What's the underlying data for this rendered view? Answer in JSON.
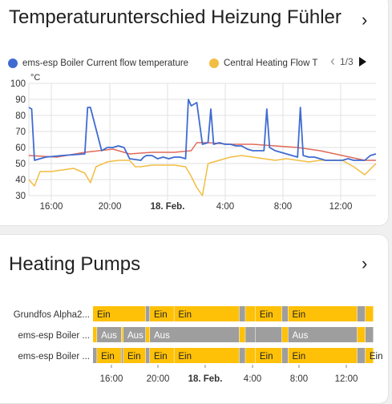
{
  "card1": {
    "title": "Temperaturunterschied Heizung Fühler",
    "legend": [
      {
        "label": "ems-esp Boiler Current flow temperature",
        "color": "#3f6bd1"
      },
      {
        "label": "Central Heating Flow T",
        "color": "#f2bd42"
      }
    ],
    "pager": {
      "text": "1/3",
      "prev_icon": "chevron-left-icon",
      "next_icon": "triangle-right-icon"
    },
    "chart_data": {
      "type": "line",
      "unit_label": "°C",
      "ylim": [
        30,
        100
      ],
      "yticks": [
        "100",
        "90",
        "80",
        "70",
        "60",
        "50",
        "40",
        "30"
      ],
      "xticks": [
        "16:00",
        "20:00",
        "18. Feb.",
        "4:00",
        "8:00",
        "12:00"
      ],
      "grid": true,
      "series": [
        {
          "name": "ems-esp Boiler Current flow temperature",
          "color": "#3f6bd1",
          "x": [
            0,
            0.5,
            1,
            3,
            6,
            10,
            10.5,
            11,
            13,
            13.5,
            14,
            15,
            16,
            17,
            18,
            20,
            20.5,
            21,
            22,
            23,
            24,
            25,
            26,
            27,
            28,
            28.5,
            29,
            30,
            31,
            32,
            32.5,
            33,
            34,
            35,
            36,
            37,
            38,
            39,
            40,
            41,
            42,
            42.5,
            43,
            44,
            46,
            47,
            48,
            48.5,
            49,
            50,
            51,
            52,
            53,
            54,
            55,
            56,
            57,
            58,
            59,
            60,
            61,
            62
          ],
          "y": [
            85,
            84,
            52,
            54,
            55,
            56,
            85,
            85,
            58,
            59,
            60,
            60,
            61,
            60,
            53,
            52,
            54,
            55,
            55,
            53,
            54,
            53,
            54,
            54,
            53,
            90,
            86,
            88,
            62,
            63,
            84,
            62,
            63,
            62,
            62,
            61,
            61,
            59,
            58,
            58,
            58,
            84,
            60,
            58,
            56,
            55,
            54,
            85,
            55,
            54,
            54,
            53,
            52,
            52,
            52,
            52,
            53,
            52,
            52,
            52,
            55,
            56
          ]
        },
        {
          "name": "Central Heating Flow T",
          "color": "#f2bd42",
          "x": [
            0,
            1,
            2,
            4,
            6,
            8,
            10,
            11,
            12,
            14,
            16,
            18,
            19,
            20,
            22,
            24,
            26,
            28,
            29,
            30,
            31,
            32,
            33,
            34,
            36,
            38,
            40,
            42,
            44,
            46,
            48,
            50,
            52,
            54,
            56,
            58,
            60,
            62
          ],
          "y": [
            40,
            36,
            45,
            45,
            46,
            47,
            44,
            38,
            48,
            51,
            52,
            52,
            48,
            48,
            49,
            49,
            49,
            48,
            42,
            35,
            30,
            50,
            51,
            52,
            54,
            55,
            54,
            53,
            52,
            53,
            52,
            51,
            52,
            52,
            52,
            48,
            43,
            50
          ]
        },
        {
          "name": "",
          "color": "#e06a5a",
          "x": [
            0,
            5,
            10,
            15,
            18,
            22,
            26,
            29,
            30,
            32,
            36,
            40,
            44,
            48,
            52,
            56,
            60,
            62
          ],
          "y": [
            55,
            54,
            57,
            59,
            56,
            57,
            57,
            58,
            63,
            63,
            62,
            62,
            61,
            60,
            58,
            55,
            52,
            52
          ]
        }
      ]
    }
  },
  "card2": {
    "title": "Heating Pumps",
    "on_color": "#ffc107",
    "off_color": "#9e9e9e",
    "rows": [
      {
        "label": "Grundfos Alpha2...",
        "segments": [
          {
            "s": 0,
            "e": 26,
            "state": "on",
            "text": "Ein"
          },
          {
            "s": 26,
            "e": 28,
            "state": "off",
            "text": ""
          },
          {
            "s": 28,
            "e": 40,
            "state": "on",
            "text": "Ein"
          },
          {
            "s": 40,
            "e": 72,
            "state": "on",
            "text": "Ein"
          },
          {
            "s": 72,
            "e": 75,
            "state": "off",
            "text": ""
          },
          {
            "s": 75,
            "e": 80,
            "state": "on",
            "text": ""
          },
          {
            "s": 80,
            "e": 93,
            "state": "on",
            "text": "Ein"
          },
          {
            "s": 93,
            "e": 96,
            "state": "off",
            "text": ""
          },
          {
            "s": 96,
            "e": 130,
            "state": "on",
            "text": "Ein"
          },
          {
            "s": 130,
            "e": 134,
            "state": "off",
            "text": ""
          },
          {
            "s": 134,
            "e": 138,
            "state": "on",
            "text": ""
          }
        ]
      },
      {
        "label": "ems-esp Boiler ...",
        "segments": [
          {
            "s": 0,
            "e": 2,
            "state": "on",
            "text": ""
          },
          {
            "s": 2,
            "e": 14,
            "state": "off",
            "text": "Aus"
          },
          {
            "s": 14,
            "e": 15,
            "state": "on",
            "text": ""
          },
          {
            "s": 15,
            "e": 26,
            "state": "off",
            "text": "Aus"
          },
          {
            "s": 26,
            "e": 28,
            "state": "on",
            "text": ""
          },
          {
            "s": 28,
            "e": 72,
            "state": "off",
            "text": "Aus"
          },
          {
            "s": 72,
            "e": 75,
            "state": "on",
            "text": ""
          },
          {
            "s": 75,
            "e": 80,
            "state": "off",
            "text": ""
          },
          {
            "s": 80,
            "e": 93,
            "state": "off",
            "text": ""
          },
          {
            "s": 93,
            "e": 96,
            "state": "on",
            "text": ""
          },
          {
            "s": 96,
            "e": 130,
            "state": "off",
            "text": "Aus"
          },
          {
            "s": 130,
            "e": 134,
            "state": "on",
            "text": ""
          },
          {
            "s": 134,
            "e": 138,
            "state": "off",
            "text": ""
          }
        ]
      },
      {
        "label": "ems-esp Boiler ...",
        "segments": [
          {
            "s": 0,
            "e": 2,
            "state": "off",
            "text": ""
          },
          {
            "s": 2,
            "e": 14,
            "state": "on",
            "text": "Ein"
          },
          {
            "s": 14,
            "e": 15,
            "state": "off",
            "text": ""
          },
          {
            "s": 15,
            "e": 26,
            "state": "on",
            "text": "Ein"
          },
          {
            "s": 26,
            "e": 28,
            "state": "off",
            "text": ""
          },
          {
            "s": 28,
            "e": 40,
            "state": "on",
            "text": "Ein"
          },
          {
            "s": 40,
            "e": 72,
            "state": "on",
            "text": "Ein"
          },
          {
            "s": 72,
            "e": 75,
            "state": "off",
            "text": ""
          },
          {
            "s": 75,
            "e": 80,
            "state": "on",
            "text": ""
          },
          {
            "s": 80,
            "e": 93,
            "state": "on",
            "text": "Ein"
          },
          {
            "s": 93,
            "e": 96,
            "state": "off",
            "text": ""
          },
          {
            "s": 96,
            "e": 130,
            "state": "on",
            "text": "Ein"
          },
          {
            "s": 130,
            "e": 134,
            "state": "off",
            "text": ""
          },
          {
            "s": 134,
            "e": 138,
            "state": "on",
            "text": "Ein"
          }
        ]
      }
    ],
    "xticks": [
      "16:00",
      "20:00",
      "18. Feb.",
      "4:00",
      "8:00",
      "12:00"
    ]
  }
}
